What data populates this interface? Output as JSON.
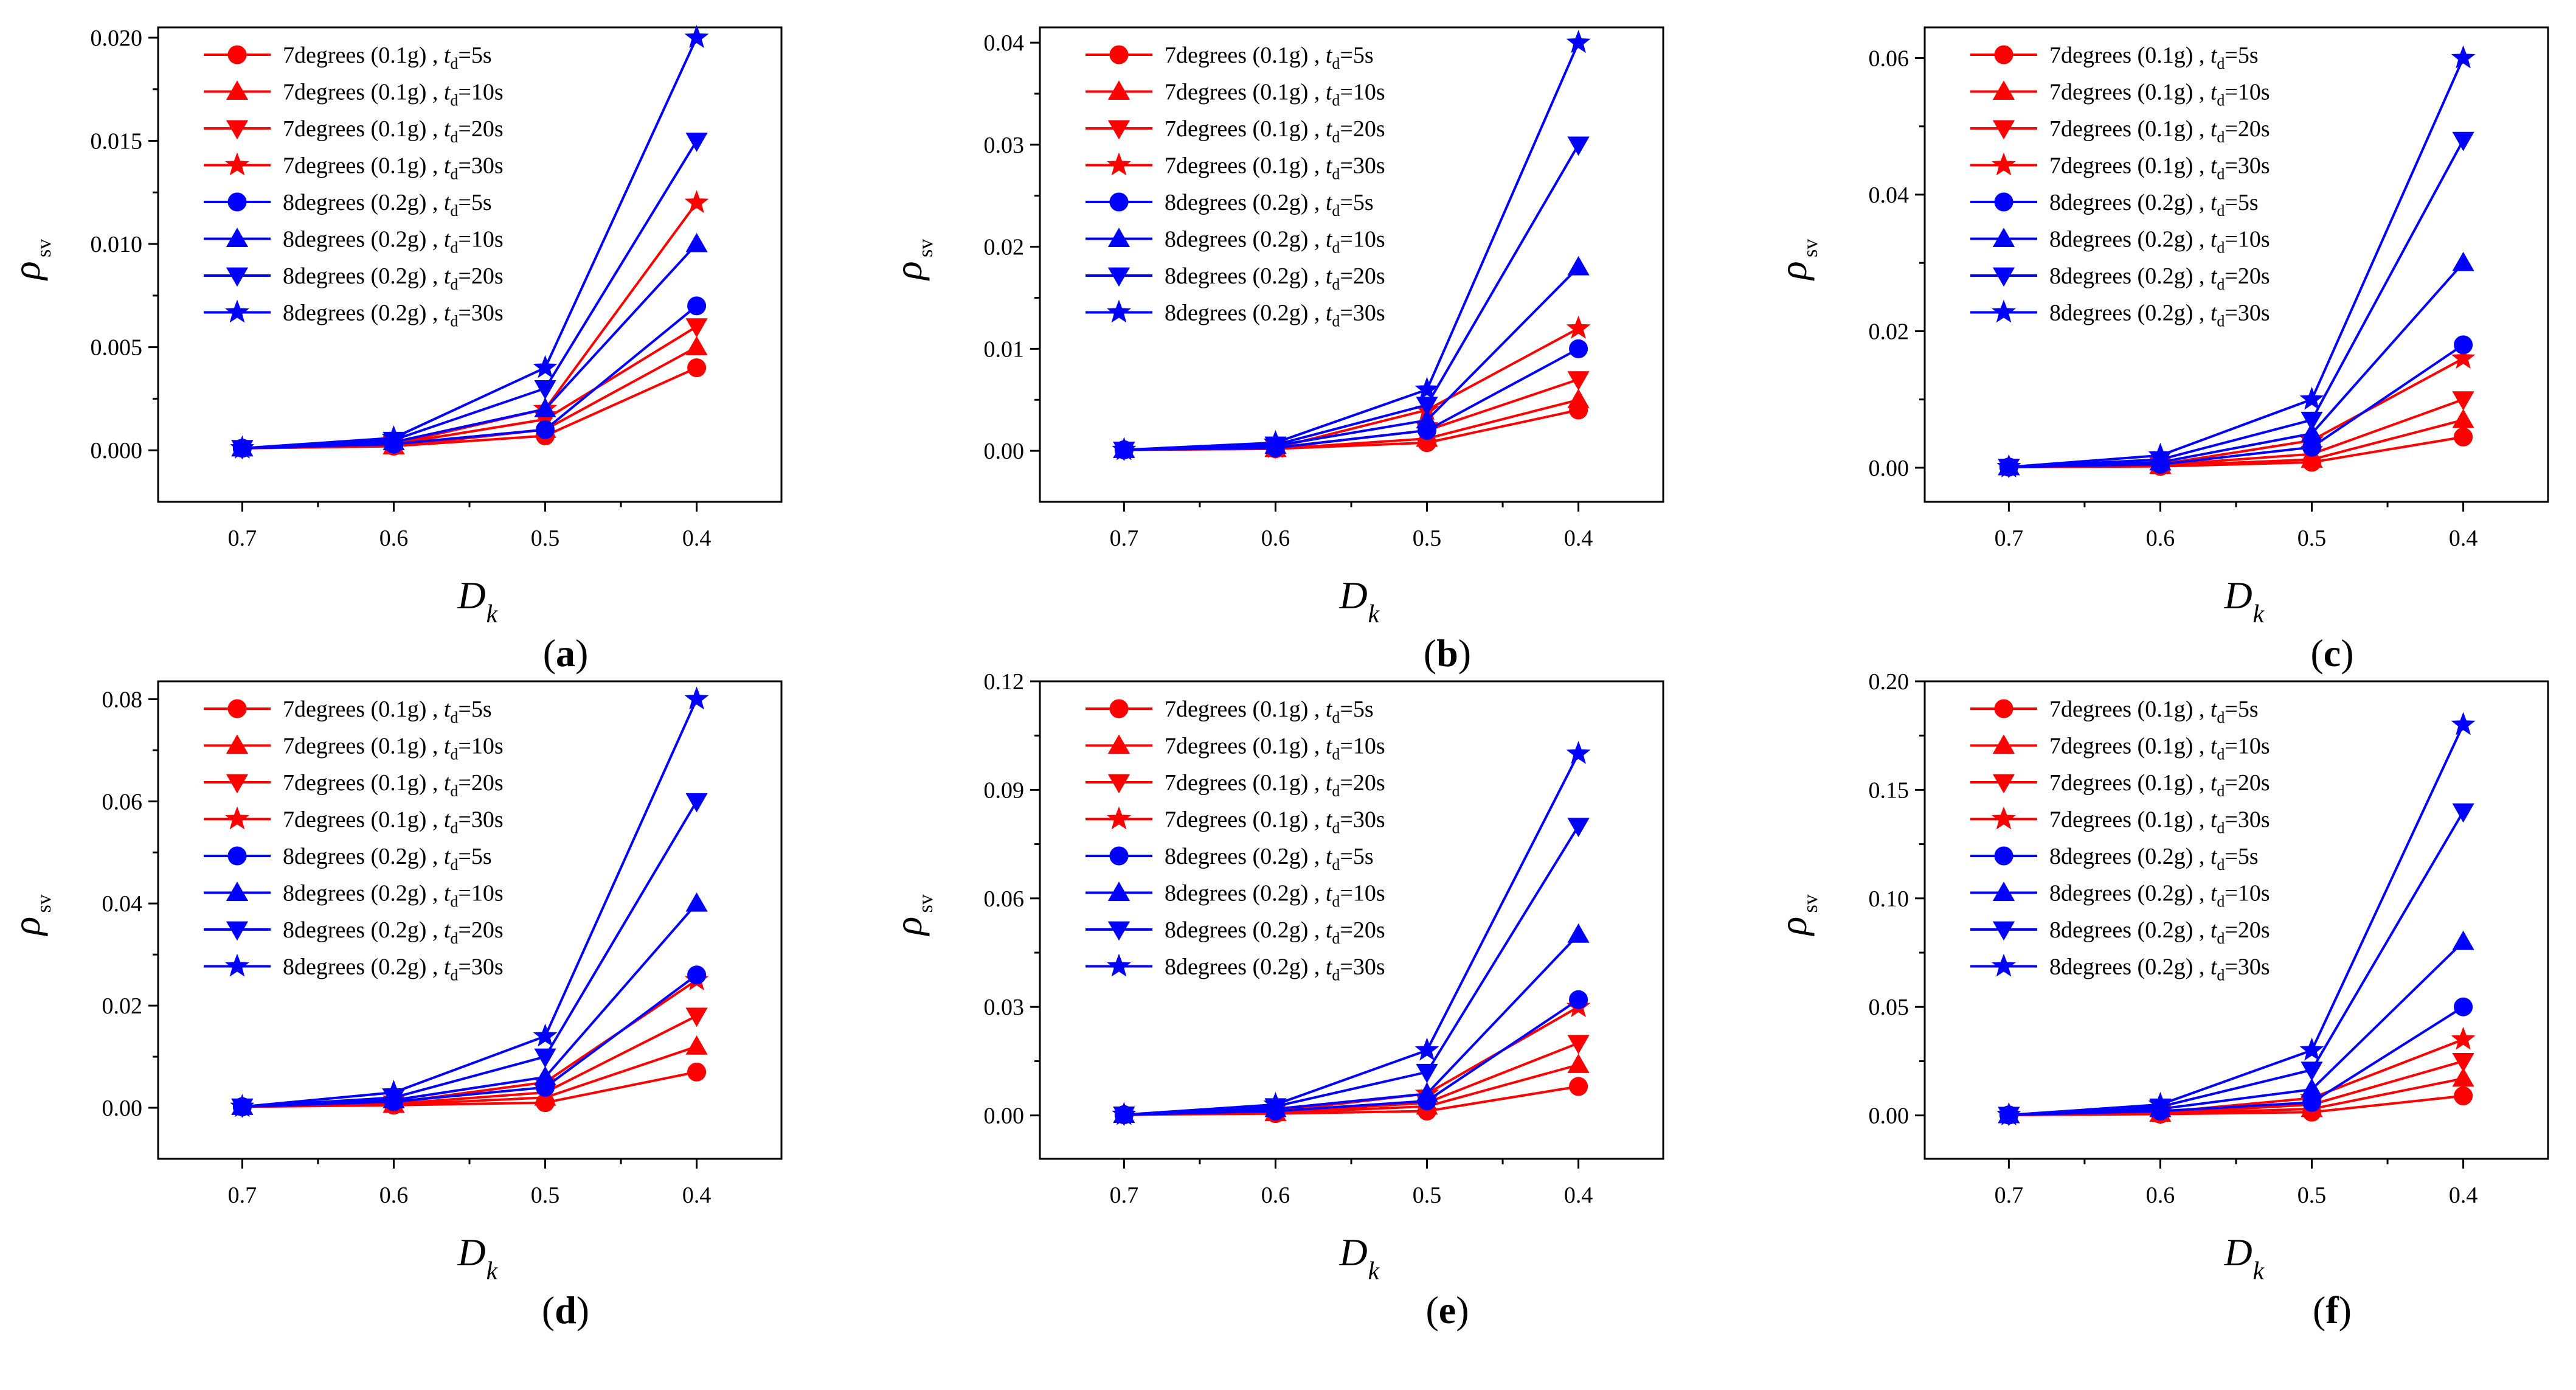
{
  "colors": {
    "red": "#ff0000",
    "blue": "#0000ff"
  },
  "legend_template": [
    {
      "prefix": "7degrees (0.1g) , ",
      "t": "t",
      "sub": "d",
      "suffix": "=5s",
      "color": "#ff0000",
      "marker": "circle"
    },
    {
      "prefix": "7degrees (0.1g) , ",
      "t": "t",
      "sub": "d",
      "suffix": "=10s",
      "color": "#ff0000",
      "marker": "triangle-up"
    },
    {
      "prefix": "7degrees (0.1g) , ",
      "t": "t",
      "sub": "d",
      "suffix": "=20s",
      "color": "#ff0000",
      "marker": "triangle-down"
    },
    {
      "prefix": "7degrees (0.1g) , ",
      "t": "t",
      "sub": "d",
      "suffix": "=30s",
      "color": "#ff0000",
      "marker": "star"
    },
    {
      "prefix": "8degrees (0.2g) , ",
      "t": "t",
      "sub": "d",
      "suffix": "=5s",
      "color": "#0000ff",
      "marker": "circle"
    },
    {
      "prefix": "8degrees (0.2g) , ",
      "t": "t",
      "sub": "d",
      "suffix": "=10s",
      "color": "#0000ff",
      "marker": "triangle-up"
    },
    {
      "prefix": "8degrees (0.2g) , ",
      "t": "t",
      "sub": "d",
      "suffix": "=20s",
      "color": "#0000ff",
      "marker": "triangle-down"
    },
    {
      "prefix": "8degrees (0.2g) , ",
      "t": "t",
      "sub": "d",
      "suffix": "=30s",
      "color": "#0000ff",
      "marker": "star"
    }
  ],
  "chart_data": [
    {
      "type": "line",
      "panel_label": {
        "open": "(",
        "letter": "a",
        "close": ")"
      },
      "xlabel": {
        "main": "D",
        "sub": "k"
      },
      "ylabel": {
        "main": "ρ",
        "sub": "sv"
      },
      "categories": [
        "0.7",
        "0.6",
        "0.5",
        "0.4"
      ],
      "yticks": [
        "0.000",
        "0.005",
        "0.010",
        "0.015",
        "0.020"
      ],
      "ylim": [
        -0.0025,
        0.0205
      ],
      "series": [
        {
          "values": [
            0.0001,
            0.0002,
            0.0007,
            0.004
          ]
        },
        {
          "values": [
            0.0001,
            0.0002,
            0.001,
            0.005
          ]
        },
        {
          "values": [
            0.0001,
            0.0003,
            0.0015,
            0.006
          ]
        },
        {
          "values": [
            0.0001,
            0.0003,
            0.002,
            0.012
          ]
        },
        {
          "values": [
            0.0001,
            0.0003,
            0.001,
            0.007
          ]
        },
        {
          "values": [
            0.0001,
            0.0004,
            0.002,
            0.01
          ]
        },
        {
          "values": [
            0.0001,
            0.0005,
            0.003,
            0.015
          ]
        },
        {
          "values": [
            0.0001,
            0.0006,
            0.004,
            0.02
          ]
        }
      ]
    },
    {
      "type": "line",
      "panel_label": {
        "open": "(",
        "letter": "b",
        "close": ")"
      },
      "xlabel": {
        "main": "D",
        "sub": "k"
      },
      "ylabel": {
        "main": "ρ",
        "sub": "sv"
      },
      "categories": [
        "0.7",
        "0.6",
        "0.5",
        "0.4"
      ],
      "yticks": [
        "0.00",
        "0.01",
        "0.02",
        "0.03",
        "0.04"
      ],
      "ylim": [
        -0.005,
        0.0415
      ],
      "series": [
        {
          "values": [
            0.0001,
            0.0002,
            0.0008,
            0.004
          ]
        },
        {
          "values": [
            0.0001,
            0.0002,
            0.0012,
            0.005
          ]
        },
        {
          "values": [
            0.0001,
            0.0003,
            0.002,
            0.007
          ]
        },
        {
          "values": [
            0.0001,
            0.0003,
            0.004,
            0.012
          ]
        },
        {
          "values": [
            0.0001,
            0.0003,
            0.002,
            0.01
          ]
        },
        {
          "values": [
            0.0001,
            0.0005,
            0.003,
            0.018
          ]
        },
        {
          "values": [
            0.0001,
            0.0006,
            0.0045,
            0.03
          ]
        },
        {
          "values": [
            0.0001,
            0.0008,
            0.006,
            0.04
          ]
        }
      ]
    },
    {
      "type": "line",
      "panel_label": {
        "open": "(",
        "letter": "c",
        "close": ")"
      },
      "xlabel": {
        "main": "D",
        "sub": "k"
      },
      "ylabel": {
        "main": "ρ",
        "sub": "sv"
      },
      "categories": [
        "0.7",
        "0.6",
        "0.5",
        "0.4"
      ],
      "yticks": [
        "0.00",
        "0.02",
        "0.04",
        "0.06"
      ],
      "ylim": [
        -0.005,
        0.0645
      ],
      "series": [
        {
          "values": [
            0.0001,
            0.0002,
            0.0008,
            0.0045
          ]
        },
        {
          "values": [
            0.0001,
            0.0003,
            0.0012,
            0.007
          ]
        },
        {
          "values": [
            0.0001,
            0.0004,
            0.002,
            0.01
          ]
        },
        {
          "values": [
            0.0001,
            0.0005,
            0.004,
            0.016
          ]
        },
        {
          "values": [
            0.0001,
            0.0005,
            0.003,
            0.018
          ]
        },
        {
          "values": [
            0.0001,
            0.0008,
            0.005,
            0.03
          ]
        },
        {
          "values": [
            0.0001,
            0.0012,
            0.007,
            0.048
          ]
        },
        {
          "values": [
            0.0001,
            0.0018,
            0.01,
            0.06
          ]
        }
      ]
    },
    {
      "type": "line",
      "panel_label": {
        "open": "(",
        "letter": "d",
        "close": ")"
      },
      "xlabel": {
        "main": "D",
        "sub": "k"
      },
      "ylabel": {
        "main": "ρ",
        "sub": "sv"
      },
      "categories": [
        "0.7",
        "0.6",
        "0.5",
        "0.4"
      ],
      "yticks": [
        "0.00",
        "0.02",
        "0.04",
        "0.06",
        "0.08"
      ],
      "ylim": [
        -0.01,
        0.0835
      ],
      "series": [
        {
          "values": [
            0.0002,
            0.0005,
            0.001,
            0.007
          ]
        },
        {
          "values": [
            0.0002,
            0.0006,
            0.002,
            0.012
          ]
        },
        {
          "values": [
            0.0002,
            0.0008,
            0.003,
            0.018
          ]
        },
        {
          "values": [
            0.0002,
            0.001,
            0.005,
            0.025
          ]
        },
        {
          "values": [
            0.0002,
            0.0012,
            0.004,
            0.026
          ]
        },
        {
          "values": [
            0.0002,
            0.0015,
            0.006,
            0.04
          ]
        },
        {
          "values": [
            0.0002,
            0.002,
            0.01,
            0.06
          ]
        },
        {
          "values": [
            0.0002,
            0.003,
            0.014,
            0.08
          ]
        }
      ]
    },
    {
      "type": "line",
      "panel_label": {
        "open": "(",
        "letter": "e",
        "close": ")"
      },
      "xlabel": {
        "main": "D",
        "sub": "k"
      },
      "ylabel": {
        "main": "ρ",
        "sub": "sv"
      },
      "categories": [
        "0.7",
        "0.6",
        "0.5",
        "0.4"
      ],
      "yticks": [
        "0.00",
        "0.03",
        "0.06",
        "0.09",
        "0.12"
      ],
      "ylim": [
        -0.012,
        0.12
      ],
      "series": [
        {
          "values": [
            0.0002,
            0.0005,
            0.0012,
            0.008
          ]
        },
        {
          "values": [
            0.0002,
            0.0007,
            0.0025,
            0.014
          ]
        },
        {
          "values": [
            0.0002,
            0.0009,
            0.0035,
            0.02
          ]
        },
        {
          "values": [
            0.0002,
            0.0012,
            0.006,
            0.03
          ]
        },
        {
          "values": [
            0.0002,
            0.0012,
            0.004,
            0.032
          ]
        },
        {
          "values": [
            0.0002,
            0.0018,
            0.006,
            0.05
          ]
        },
        {
          "values": [
            0.0002,
            0.0025,
            0.012,
            0.08
          ]
        },
        {
          "values": [
            0.0002,
            0.003,
            0.018,
            0.1
          ]
        }
      ]
    },
    {
      "type": "line",
      "panel_label": {
        "open": "(",
        "letter": "f",
        "close": ")"
      },
      "xlabel": {
        "main": "D",
        "sub": "k"
      },
      "ylabel": {
        "main": "ρ",
        "sub": "sv"
      },
      "categories": [
        "0.7",
        "0.6",
        "0.5",
        "0.4"
      ],
      "yticks": [
        "0.00",
        "0.05",
        "0.10",
        "0.15",
        "0.20"
      ],
      "ylim": [
        -0.02,
        0.2
      ],
      "series": [
        {
          "values": [
            0.0002,
            0.0006,
            0.0015,
            0.009
          ]
        },
        {
          "values": [
            0.0002,
            0.0008,
            0.003,
            0.017
          ]
        },
        {
          "values": [
            0.0002,
            0.001,
            0.005,
            0.025
          ]
        },
        {
          "values": [
            0.0002,
            0.0015,
            0.008,
            0.035
          ]
        },
        {
          "values": [
            0.0002,
            0.002,
            0.006,
            0.05
          ]
        },
        {
          "values": [
            0.0002,
            0.003,
            0.012,
            0.08
          ]
        },
        {
          "values": [
            0.0002,
            0.004,
            0.021,
            0.14
          ]
        },
        {
          "values": [
            0.0002,
            0.005,
            0.03,
            0.18
          ]
        }
      ]
    }
  ]
}
